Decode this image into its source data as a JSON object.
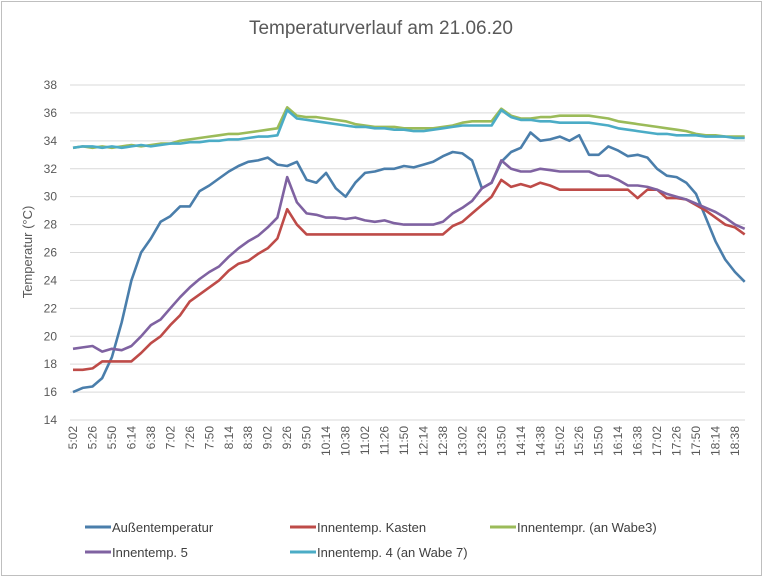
{
  "chart_data": {
    "type": "line",
    "title": "Temperaturverlauf am 21.06.20",
    "xlabel": "",
    "ylabel": "Temperatur (°C)",
    "ylim": [
      14,
      38
    ],
    "yticks": [
      14,
      16,
      18,
      20,
      22,
      24,
      26,
      28,
      30,
      32,
      34,
      36,
      38
    ],
    "grid": true,
    "legend_position": "bottom",
    "xtick_labels": [
      "5:02",
      "5:26",
      "5:50",
      "6:14",
      "6:38",
      "7:02",
      "7:26",
      "7:50",
      "8:14",
      "8:38",
      "9:02",
      "9:26",
      "9:50",
      "10:14",
      "10:38",
      "11:02",
      "11:26",
      "11:50",
      "12:14",
      "12:38",
      "13:02",
      "13:26",
      "13:50",
      "14:14",
      "14:38",
      "15:02",
      "15:26",
      "15:50",
      "16:14",
      "16:38",
      "17:02",
      "17:26",
      "17:50",
      "18:14",
      "18:38"
    ],
    "x": [
      "5:02",
      "5:14",
      "5:26",
      "5:38",
      "5:50",
      "6:02",
      "6:14",
      "6:26",
      "6:38",
      "6:50",
      "7:02",
      "7:14",
      "7:26",
      "7:38",
      "7:50",
      "8:02",
      "8:14",
      "8:26",
      "8:38",
      "8:50",
      "9:02",
      "9:14",
      "9:26",
      "9:38",
      "9:50",
      "10:02",
      "10:14",
      "10:26",
      "10:38",
      "10:50",
      "11:02",
      "11:14",
      "11:26",
      "11:38",
      "11:50",
      "12:02",
      "12:14",
      "12:26",
      "12:38",
      "12:50",
      "13:02",
      "13:14",
      "13:26",
      "13:38",
      "13:50",
      "14:02",
      "14:14",
      "14:26",
      "14:38",
      "14:50",
      "15:02",
      "15:14",
      "15:26",
      "15:38",
      "15:50",
      "16:02",
      "16:14",
      "16:26",
      "16:38",
      "16:50",
      "17:02",
      "17:14",
      "17:26",
      "17:38",
      "17:50",
      "18:02",
      "18:14",
      "18:26",
      "18:38",
      "18:50"
    ],
    "series": [
      {
        "name": "Außentemperatur",
        "color": "#4a7eab",
        "values": [
          16.0,
          16.3,
          16.4,
          17.0,
          18.5,
          21.0,
          24.0,
          26.0,
          27.0,
          28.2,
          28.6,
          29.3,
          29.3,
          30.4,
          30.8,
          31.3,
          31.8,
          32.2,
          32.5,
          32.6,
          32.8,
          32.3,
          32.2,
          32.5,
          31.2,
          31.0,
          31.7,
          30.6,
          30.0,
          31.0,
          31.7,
          31.8,
          32.0,
          32.0,
          32.2,
          32.1,
          32.3,
          32.5,
          32.9,
          33.2,
          33.1,
          32.6,
          30.6,
          31.0,
          32.5,
          33.2,
          33.5,
          34.6,
          34.0,
          34.1,
          34.3,
          34.0,
          34.4,
          33.0,
          33.0,
          33.6,
          33.3,
          32.9,
          33.0,
          32.8,
          32.0,
          31.5,
          31.4,
          31.0,
          30.2,
          28.5,
          26.8,
          25.5,
          24.6,
          23.9
        ]
      },
      {
        "name": "Innentemp. Kasten",
        "color": "#be4b48",
        "values": [
          17.6,
          17.6,
          17.7,
          18.2,
          18.2,
          18.2,
          18.2,
          18.8,
          19.5,
          20.0,
          20.8,
          21.5,
          22.5,
          23.0,
          23.5,
          24.0,
          24.7,
          25.2,
          25.4,
          25.9,
          26.3,
          27.0,
          29.1,
          28.0,
          27.3,
          27.3,
          27.3,
          27.3,
          27.3,
          27.3,
          27.3,
          27.3,
          27.3,
          27.3,
          27.3,
          27.3,
          27.3,
          27.3,
          27.3,
          27.9,
          28.2,
          28.8,
          29.4,
          30.0,
          31.2,
          30.7,
          30.9,
          30.7,
          31.0,
          30.8,
          30.5,
          30.5,
          30.5,
          30.5,
          30.5,
          30.5,
          30.5,
          30.5,
          29.9,
          30.5,
          30.5,
          29.9,
          29.9,
          29.8,
          29.4,
          29.0,
          28.5,
          28.0,
          27.8,
          27.3
        ]
      },
      {
        "name": "Innentempr. (an Wabe3)",
        "color": "#9bbb59",
        "values": [
          33.5,
          33.6,
          33.5,
          33.6,
          33.5,
          33.6,
          33.7,
          33.6,
          33.7,
          33.8,
          33.8,
          34.0,
          34.1,
          34.2,
          34.3,
          34.4,
          34.5,
          34.5,
          34.6,
          34.7,
          34.8,
          34.9,
          36.4,
          35.8,
          35.7,
          35.7,
          35.6,
          35.5,
          35.4,
          35.2,
          35.1,
          35.0,
          35.0,
          35.0,
          34.9,
          34.9,
          34.9,
          34.9,
          35.0,
          35.1,
          35.3,
          35.4,
          35.4,
          35.4,
          36.3,
          35.8,
          35.6,
          35.6,
          35.7,
          35.7,
          35.8,
          35.8,
          35.8,
          35.8,
          35.7,
          35.6,
          35.4,
          35.3,
          35.2,
          35.1,
          35.0,
          34.9,
          34.8,
          34.7,
          34.5,
          34.4,
          34.4,
          34.3,
          34.3,
          34.3
        ]
      },
      {
        "name": "Innentemp. 5",
        "color": "#7f62a1",
        "values": [
          19.1,
          19.2,
          19.3,
          18.9,
          19.1,
          19.0,
          19.3,
          20.0,
          20.8,
          21.2,
          22.0,
          22.8,
          23.5,
          24.1,
          24.6,
          25.0,
          25.7,
          26.3,
          26.8,
          27.2,
          27.8,
          28.5,
          31.4,
          29.6,
          28.8,
          28.7,
          28.5,
          28.5,
          28.4,
          28.5,
          28.3,
          28.2,
          28.3,
          28.1,
          28.0,
          28.0,
          28.0,
          28.0,
          28.2,
          28.8,
          29.2,
          29.7,
          30.6,
          31.0,
          32.6,
          32.0,
          31.8,
          31.8,
          32.0,
          31.9,
          31.8,
          31.8,
          31.8,
          31.8,
          31.5,
          31.5,
          31.2,
          30.8,
          30.8,
          30.7,
          30.5,
          30.2,
          30.0,
          29.8,
          29.5,
          29.2,
          28.9,
          28.5,
          28.0,
          27.7
        ]
      },
      {
        "name": "Innentemp. 4 (an Wabe 7)",
        "color": "#4bacc6",
        "values": [
          33.5,
          33.6,
          33.6,
          33.5,
          33.6,
          33.5,
          33.6,
          33.7,
          33.6,
          33.7,
          33.8,
          33.8,
          33.9,
          33.9,
          34.0,
          34.0,
          34.1,
          34.1,
          34.2,
          34.3,
          34.3,
          34.4,
          36.2,
          35.6,
          35.5,
          35.4,
          35.3,
          35.2,
          35.1,
          35.0,
          35.0,
          34.9,
          34.9,
          34.8,
          34.8,
          34.7,
          34.7,
          34.8,
          34.9,
          35.0,
          35.1,
          35.1,
          35.1,
          35.1,
          36.2,
          35.7,
          35.5,
          35.5,
          35.4,
          35.4,
          35.3,
          35.3,
          35.3,
          35.3,
          35.2,
          35.1,
          34.9,
          34.8,
          34.7,
          34.6,
          34.5,
          34.5,
          34.4,
          34.4,
          34.4,
          34.3,
          34.3,
          34.3,
          34.2,
          34.2
        ]
      }
    ]
  }
}
